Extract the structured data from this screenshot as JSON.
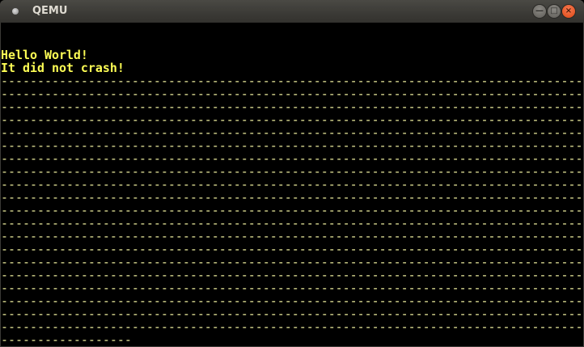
{
  "window": {
    "title": "QEMU"
  },
  "titlebar_buttons": {
    "minimize": "—",
    "maximize": "□",
    "close": "×"
  },
  "colors": {
    "text": "#ffff55",
    "background": "#000000",
    "close_button": "#e95420"
  },
  "console": {
    "lines": [
      "Hello World!",
      "It did not crash!"
    ],
    "dash_lines": [
      "--------------------------------------------------------------------------------",
      "--------------------------------------------------------------------------------",
      "--------------------------------------------------------------------------------",
      "--------------------------------------------------------------------------------",
      "--------------------------------------------------------------------------------",
      "--------------------------------------------------------------------------------",
      "--------------------------------------------------------------------------------",
      "--------------------------------------------------------------------------------",
      "--------------------------------------------------------------------------------",
      "--------------------------------------------------------------------------------",
      "--------------------------------------------------------------------------------",
      "--------------------------------------------------------------------------------",
      "--------------------------------------------------------------------------------",
      "--------------------------------------------------------------------------------",
      "--------------------------------------------------------------------------------",
      "--------------------------------------------------------------------------------",
      "--------------------------------------------------------------------------------",
      "--------------------------------------------------------------------------------",
      "--------------------------------------------------------------------------------",
      "--------------------------------------------------------------------------------",
      "------------------"
    ]
  }
}
